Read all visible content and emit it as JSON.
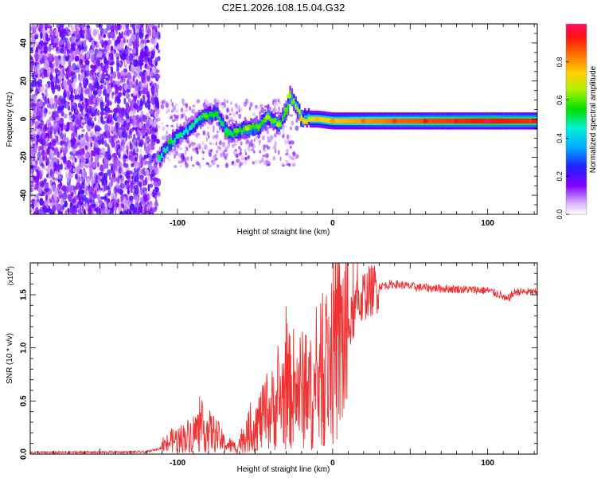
{
  "title": "C2E1.2026.108.15.04.G32",
  "chart_data": [
    {
      "type": "heatmap",
      "xlabel": "Height of straight line (km)",
      "ylabel": "Frequency (Hz)",
      "xlim": [
        -195,
        132
      ],
      "ylim": [
        -50,
        50
      ],
      "xticks": [
        -100,
        0,
        100
      ],
      "yticks": [
        -40,
        -20,
        0,
        20,
        40
      ],
      "colorbar": {
        "label": "Normalized spectral amplitude",
        "range": [
          0,
          1
        ],
        "ticks": [
          0.0,
          0.2,
          0.4,
          0.6,
          0.8
        ]
      },
      "ridge": [
        {
          "x": -112,
          "f": -20,
          "amp": 0.45
        },
        {
          "x": -105,
          "f": -12,
          "amp": 0.5
        },
        {
          "x": -98,
          "f": -8,
          "amp": 0.45
        },
        {
          "x": -90,
          "f": -3,
          "amp": 0.45
        },
        {
          "x": -82,
          "f": 2,
          "amp": 0.55
        },
        {
          "x": -75,
          "f": 3,
          "amp": 0.5
        },
        {
          "x": -68,
          "f": -8,
          "amp": 0.5
        },
        {
          "x": -62,
          "f": -6,
          "amp": 0.55
        },
        {
          "x": -55,
          "f": -5,
          "amp": 0.6
        },
        {
          "x": -48,
          "f": -4,
          "amp": 0.55
        },
        {
          "x": -42,
          "f": 1,
          "amp": 0.6
        },
        {
          "x": -35,
          "f": -3,
          "amp": 0.6
        },
        {
          "x": -30,
          "f": 5,
          "amp": 0.55
        },
        {
          "x": -28,
          "f": 12,
          "amp": 0.6
        },
        {
          "x": -20,
          "f": 0,
          "amp": 0.7
        },
        {
          "x": -10,
          "f": 0,
          "amp": 0.72
        },
        {
          "x": 0,
          "f": -1,
          "amp": 0.75
        },
        {
          "x": 20,
          "f": -1,
          "amp": 0.8
        },
        {
          "x": 40,
          "f": -1,
          "amp": 0.85
        },
        {
          "x": 60,
          "f": -1,
          "amp": 0.88
        },
        {
          "x": 80,
          "f": -1,
          "amp": 0.9
        },
        {
          "x": 100,
          "f": -1,
          "amp": 0.95
        },
        {
          "x": 130,
          "f": -1,
          "amp": 0.9
        }
      ]
    },
    {
      "type": "line",
      "xlabel": "Height of straight line (km)",
      "ylabel": "SNR (10 * v/v)",
      "yscale_label": "(x10",
      "yscale_exp": "4",
      "yscale_close": ")",
      "xlim": [
        -195,
        132
      ],
      "ylim": [
        0,
        1.8
      ],
      "xticks": [
        -100,
        0,
        100
      ],
      "yticks": [
        0.0,
        0.5,
        1.0,
        1.5
      ],
      "color": "#ef3232",
      "x": [
        -195,
        -120,
        -110,
        -105,
        -95,
        -85,
        -80,
        -75,
        -70,
        -62,
        -58,
        -48,
        -40,
        -32,
        -25,
        -18,
        -12,
        -5,
        0,
        5,
        10,
        15,
        20,
        30,
        40,
        55,
        70,
        85,
        100,
        108,
        112,
        118,
        132
      ],
      "values": [
        0.015,
        0.02,
        0.06,
        0.12,
        0.16,
        0.24,
        0.22,
        0.18,
        0.1,
        0.06,
        0.15,
        0.3,
        0.4,
        0.55,
        0.62,
        0.6,
        0.55,
        0.85,
        0.95,
        1.05,
        1.15,
        1.38,
        1.5,
        1.58,
        1.6,
        1.57,
        1.56,
        1.55,
        1.54,
        1.5,
        1.45,
        1.53,
        1.52
      ]
    }
  ]
}
